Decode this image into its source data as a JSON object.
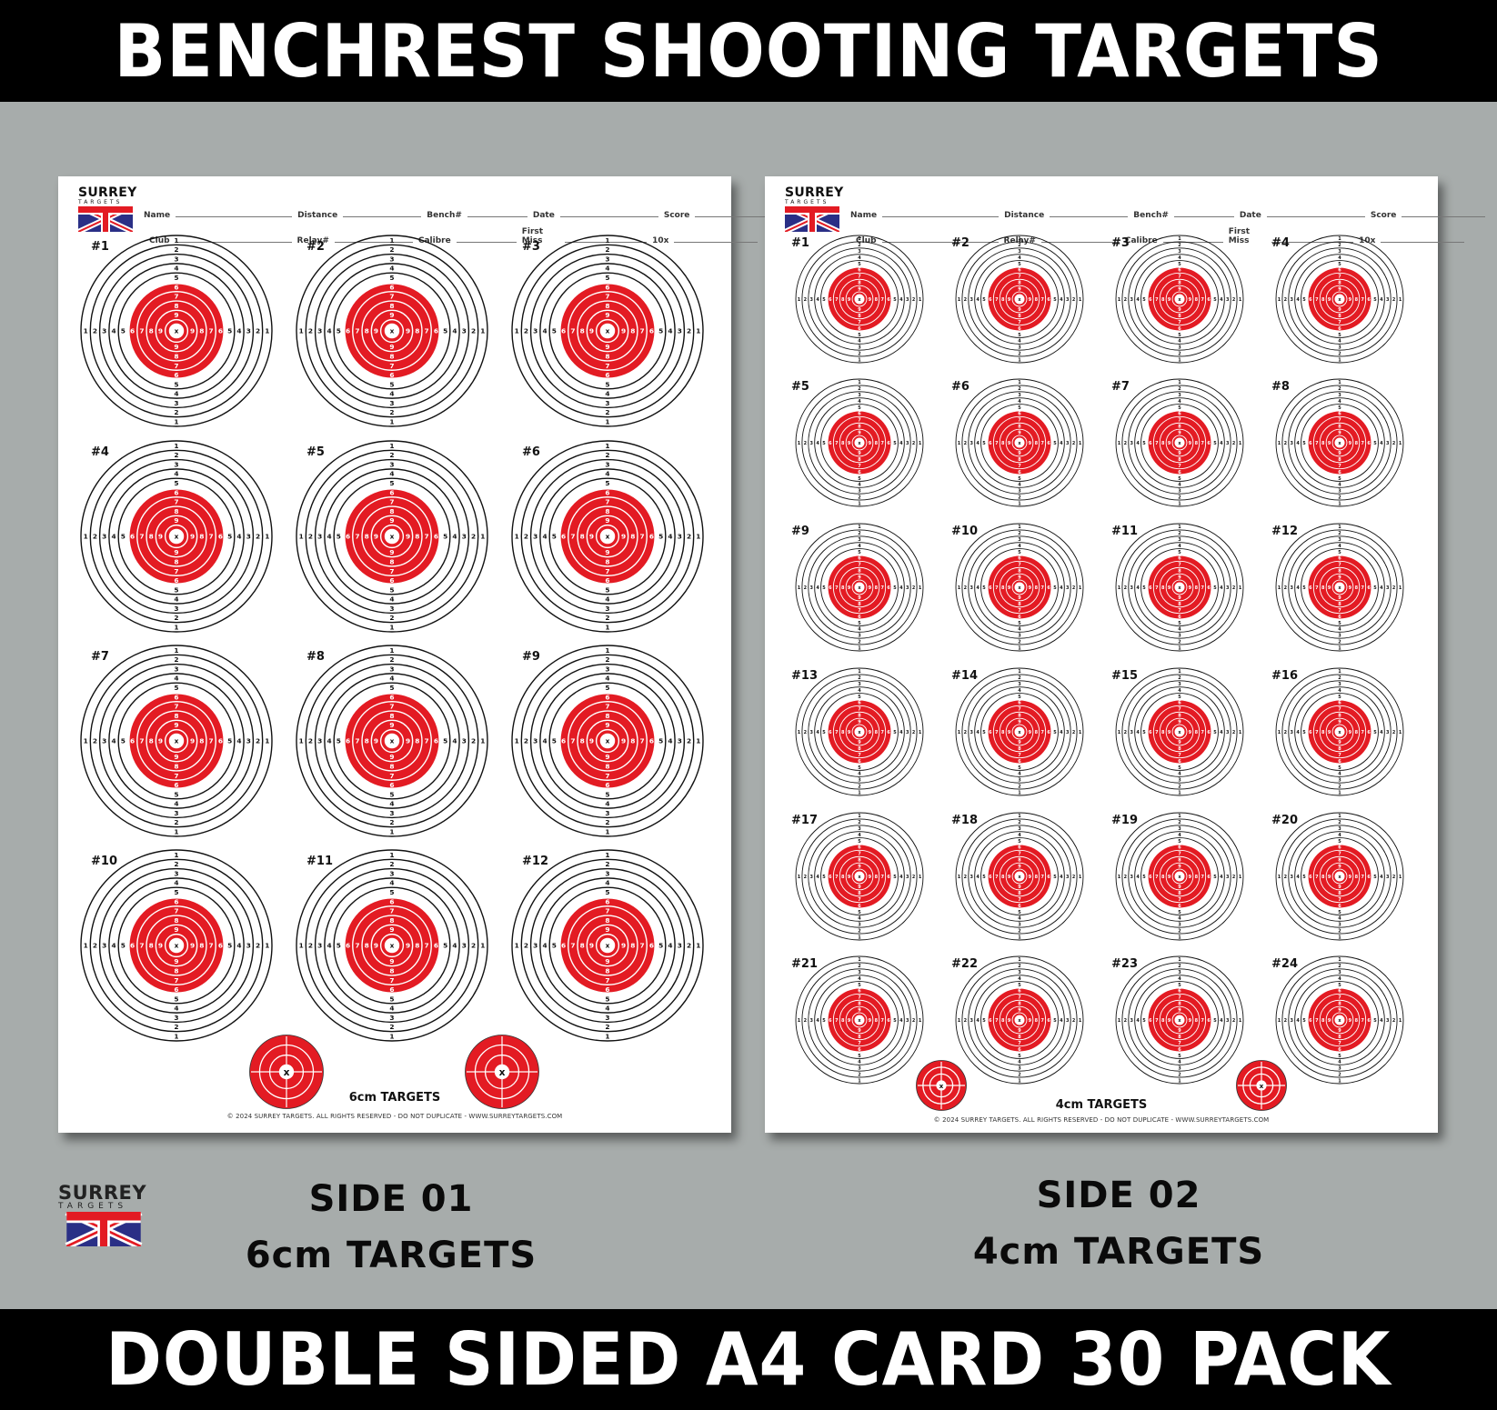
{
  "header": {
    "title": "BENCHREST SHOOTING TARGETS"
  },
  "footer": {
    "title": "DOUBLE SIDED A4 CARD 30 PACK"
  },
  "colors": {
    "banner_bg": "#000000",
    "page_bg": "#a7acab",
    "target_red": "#e31b23",
    "flag_blue": "#2a2f86",
    "flag_red": "#e31b23"
  },
  "brand": {
    "line1": "SURREY",
    "line2": "TARGETS"
  },
  "form": {
    "row1": [
      "Name",
      "Distance",
      "Bench#",
      "Date",
      "Score"
    ],
    "row2": [
      "Club",
      "Relay#",
      "Calibre",
      "First Miss",
      "10x"
    ]
  },
  "sheets": [
    {
      "side_label_1": "SIDE 01",
      "side_label_2": "6cm TARGETS",
      "title": "6cm TARGETS",
      "copyright": "© 2024 SURREY TARGETS. ALL RIGHTS RESERVED - DO NOT DUPLICATE - WWW.SURREYTARGETS.COM",
      "target_size_cm": 6,
      "target_count": 12,
      "columns": 3,
      "targets": [
        "#1",
        "#2",
        "#3",
        "#4",
        "#5",
        "#6",
        "#7",
        "#8",
        "#9",
        "#10",
        "#11",
        "#12"
      ],
      "ring_labels": [
        "1",
        "2",
        "3",
        "4",
        "5",
        "6",
        "7",
        "8",
        "9",
        "X"
      ],
      "sighters": 2
    },
    {
      "side_label_1": "SIDE 02",
      "side_label_2": "4cm TARGETS",
      "title": "4cm TARGETS",
      "copyright": "© 2024 SURREY TARGETS. ALL RIGHTS RESERVED - DO NOT DUPLICATE - WWW.SURREYTARGETS.COM",
      "target_size_cm": 4,
      "target_count": 24,
      "columns": 4,
      "targets": [
        "#1",
        "#2",
        "#3",
        "#4",
        "#5",
        "#6",
        "#7",
        "#8",
        "#9",
        "#10",
        "#11",
        "#12",
        "#13",
        "#14",
        "#15",
        "#16",
        "#17",
        "#18",
        "#19",
        "#20",
        "#21",
        "#22",
        "#23",
        "#24"
      ],
      "ring_labels": [
        "1",
        "2",
        "3",
        "4",
        "5",
        "6",
        "7",
        "8",
        "9",
        "X"
      ],
      "sighters": 2
    }
  ]
}
